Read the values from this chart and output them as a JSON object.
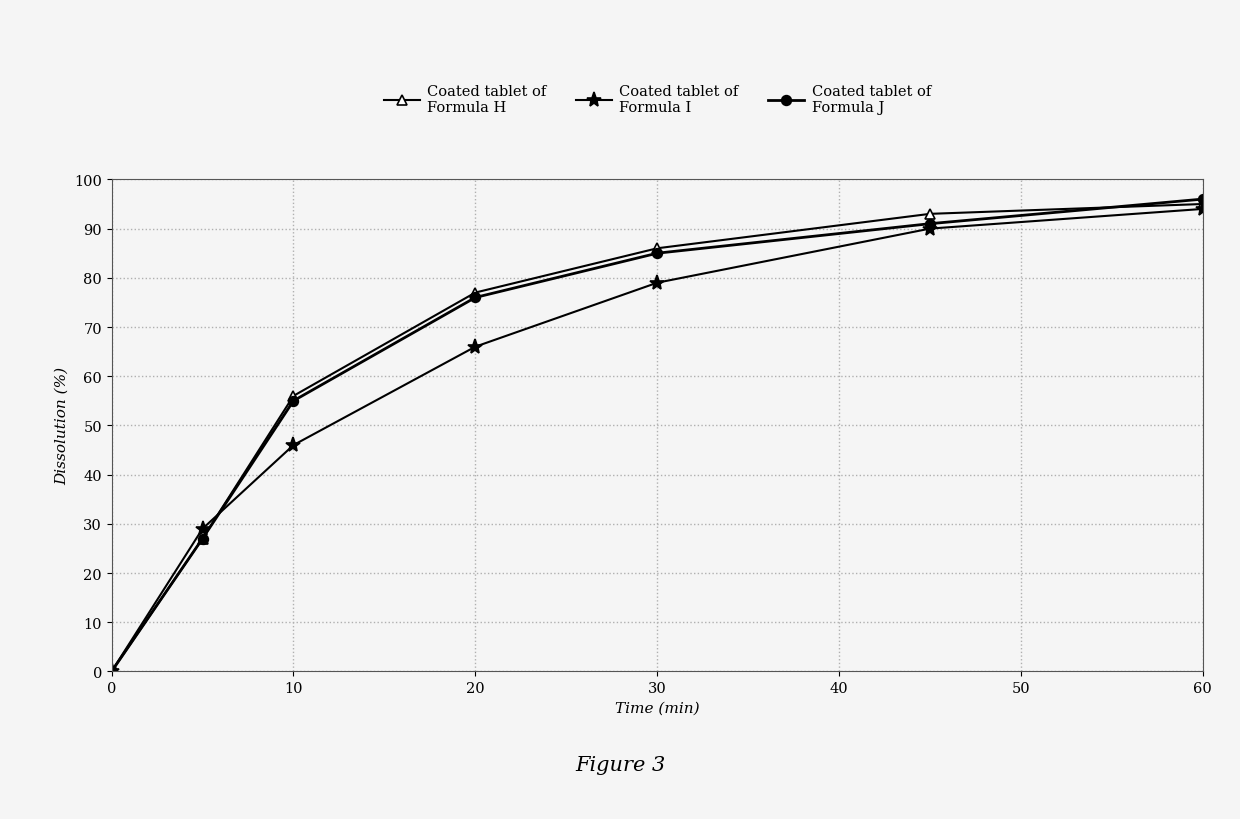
{
  "title": "Figure 3",
  "xlabel": "Time (min)",
  "ylabel": "Dissolution (%)",
  "xlim": [
    0,
    60
  ],
  "ylim": [
    0,
    100
  ],
  "xticks": [
    0,
    10,
    20,
    30,
    40,
    50,
    60
  ],
  "yticks": [
    0,
    10,
    20,
    30,
    40,
    50,
    60,
    70,
    80,
    90,
    100
  ],
  "series": [
    {
      "label": "Coated tablet of\nFormula H",
      "x": [
        0,
        5,
        10,
        20,
        30,
        45,
        60
      ],
      "y": [
        0,
        27,
        56,
        77,
        86,
        93,
        95
      ],
      "color": "#000000",
      "marker": "^",
      "linestyle": "-",
      "linewidth": 1.5,
      "markersize": 7,
      "markerfacecolor": "white"
    },
    {
      "label": "Coated tablet of\nFormula I",
      "x": [
        0,
        5,
        10,
        20,
        30,
        45,
        60
      ],
      "y": [
        0,
        29,
        46,
        66,
        79,
        90,
        94
      ],
      "color": "#000000",
      "marker": "*",
      "linestyle": "-",
      "linewidth": 1.5,
      "markersize": 11,
      "markerfacecolor": "#000000"
    },
    {
      "label": "Coated tablet of\nFormula J",
      "x": [
        0,
        5,
        10,
        20,
        30,
        45,
        60
      ],
      "y": [
        0,
        27,
        55,
        76,
        85,
        91,
        96
      ],
      "color": "#000000",
      "marker": "o",
      "linestyle": "-",
      "linewidth": 2.0,
      "markersize": 7,
      "markerfacecolor": "#000000"
    }
  ],
  "grid_color": "#b0b0b0",
  "grid_linestyle": ":",
  "grid_linewidth": 1.0,
  "background_color": "#f5f5f5",
  "plot_bg_color": "#f5f5f5",
  "legend_fontsize": 10.5,
  "axis_label_fontsize": 11,
  "title_fontsize": 15,
  "tick_fontsize": 10.5
}
